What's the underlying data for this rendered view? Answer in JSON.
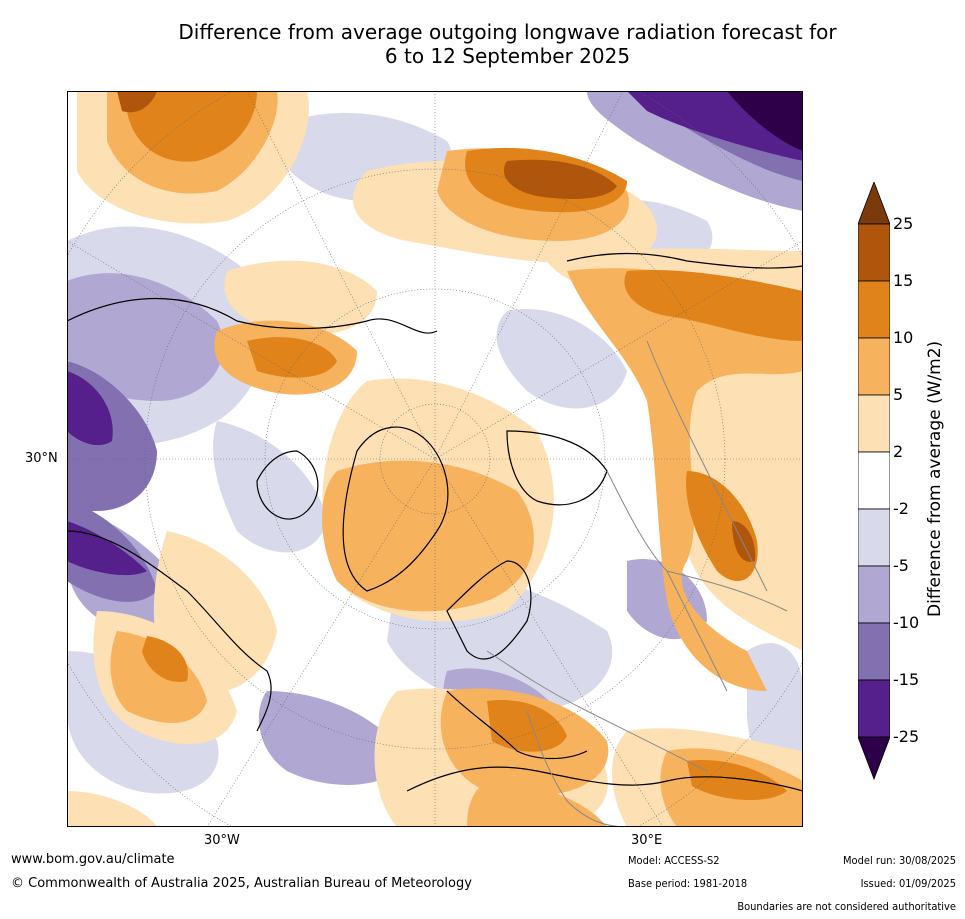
{
  "title": {
    "line1": "Difference from average outgoing longwave radiation forecast for",
    "line2": "6 to 12 September 2025"
  },
  "map": {
    "lon_labels": [
      "30°W",
      "30°E"
    ],
    "lat_labels": [
      "30°N"
    ]
  },
  "colorbar": {
    "label": "Difference from average (W/m2)",
    "ticks": [
      "25",
      "15",
      "10",
      "5",
      "2",
      "-2",
      "-5",
      "-10",
      "-15",
      "-25"
    ],
    "colors": [
      "#7a3a0b",
      "#b0560c",
      "#e0831a",
      "#f7b25e",
      "#fde0b4",
      "#ffffff",
      "#d9d9ec",
      "#b0a8d2",
      "#8270b1",
      "#56208c",
      "#2d0049"
    ]
  },
  "footer": {
    "website": "www.bom.gov.au/climate",
    "copyright": "© Commonwealth of Australia 2025, Australian Bureau of Meteorology",
    "model": "Model: ACCESS-S2",
    "base_period": "Base period: 1981-2018",
    "model_run": "Model run: 30/08/2025",
    "issued": "Issued: 01/09/2025",
    "disclaimer": "Boundaries are not considered authoritative"
  }
}
